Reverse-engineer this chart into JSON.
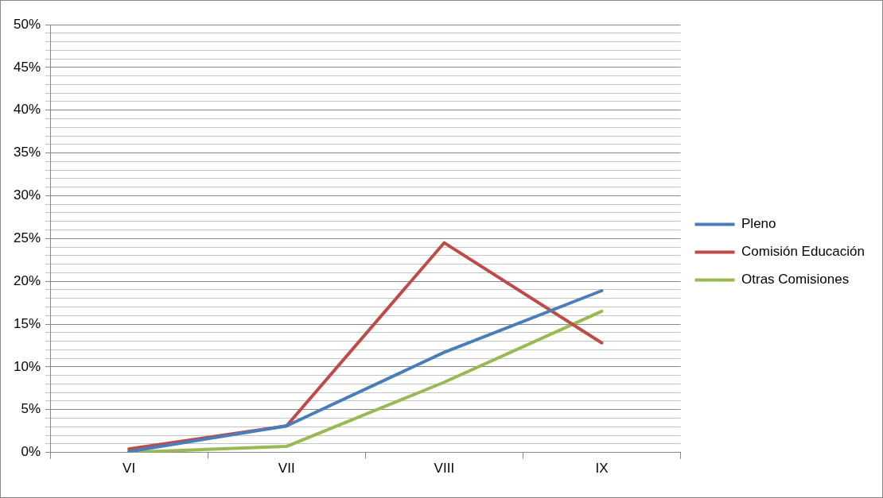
{
  "chart_data": {
    "type": "line",
    "categories": [
      "VI",
      "VII",
      "VIII",
      "IX"
    ],
    "series": [
      {
        "name": "Pleno",
        "color": "#4a7ebb",
        "values": [
          0.1,
          3.1,
          11.7,
          18.9
        ]
      },
      {
        "name": "Comisión Educación",
        "color": "#be4b48",
        "values": [
          0.4,
          3.1,
          24.5,
          12.8
        ]
      },
      {
        "name": "Otras Comisiones",
        "color": "#98b954",
        "values": [
          0,
          0.7,
          8.2,
          16.5
        ]
      }
    ],
    "ylim": [
      0,
      50
    ],
    "yticks": [
      {
        "value": 0,
        "label": "0%"
      },
      {
        "value": 1,
        "label": null
      },
      {
        "value": 2,
        "label": null
      },
      {
        "value": 3,
        "label": null
      },
      {
        "value": 4,
        "label": null
      },
      {
        "value": 5,
        "label": "5%"
      },
      {
        "value": 6,
        "label": null
      },
      {
        "value": 7,
        "label": null
      },
      {
        "value": 8,
        "label": null
      },
      {
        "value": 9,
        "label": null
      },
      {
        "value": 10,
        "label": "10%"
      },
      {
        "value": 11,
        "label": null
      },
      {
        "value": 12,
        "label": null
      },
      {
        "value": 13,
        "label": null
      },
      {
        "value": 14,
        "label": null
      },
      {
        "value": 15,
        "label": "15%"
      },
      {
        "value": 16,
        "label": null
      },
      {
        "value": 17,
        "label": null
      },
      {
        "value": 18,
        "label": null
      },
      {
        "value": 19,
        "label": null
      },
      {
        "value": 20,
        "label": "20%"
      },
      {
        "value": 21,
        "label": null
      },
      {
        "value": 22,
        "label": null
      },
      {
        "value": 23,
        "label": null
      },
      {
        "value": 24,
        "label": null
      },
      {
        "value": 25,
        "label": "25%"
      },
      {
        "value": 26,
        "label": null
      },
      {
        "value": 27,
        "label": null
      },
      {
        "value": 28,
        "label": null
      },
      {
        "value": 29,
        "label": null
      },
      {
        "value": 30,
        "label": "30%"
      },
      {
        "value": 31,
        "label": null
      },
      {
        "value": 32,
        "label": null
      },
      {
        "value": 33,
        "label": null
      },
      {
        "value": 34,
        "label": null
      },
      {
        "value": 35,
        "label": "35%"
      },
      {
        "value": 36,
        "label": null
      },
      {
        "value": 37,
        "label": null
      },
      {
        "value": 38,
        "label": null
      },
      {
        "value": 39,
        "label": null
      },
      {
        "value": 40,
        "label": "40%"
      },
      {
        "value": 41,
        "label": null
      },
      {
        "value": 42,
        "label": null
      },
      {
        "value": 43,
        "label": null
      },
      {
        "value": 44,
        "label": null
      },
      {
        "value": 45,
        "label": "45%"
      },
      {
        "value": 46,
        "label": null
      },
      {
        "value": 47,
        "label": null
      },
      {
        "value": 48,
        "label": null
      },
      {
        "value": 49,
        "label": null
      },
      {
        "value": 50,
        "label": "50%"
      }
    ],
    "grid": "y",
    "legend": "right",
    "marker": "none",
    "line_style": "solid"
  }
}
